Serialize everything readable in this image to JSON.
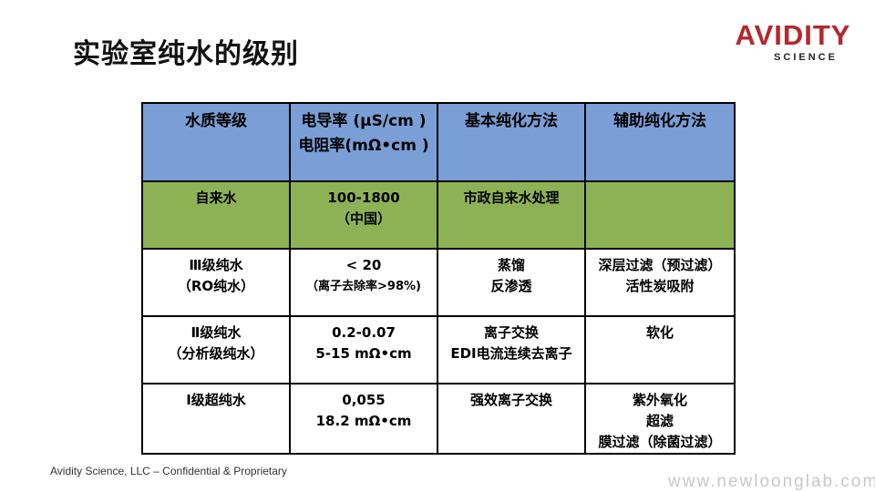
{
  "title": "实验室纯水的级别",
  "logo": {
    "main": "AVIDITY",
    "sub": "SCIENCE"
  },
  "table": {
    "headers": [
      [
        "水质等级"
      ],
      [
        "电导率 (μS/cm )",
        "电阻率(mΩ•cm )"
      ],
      [
        "基本纯化方法"
      ],
      [
        "辅助纯化方法"
      ]
    ],
    "rows": [
      [
        [
          "自来水"
        ],
        [
          "100-1800",
          "（中国）"
        ],
        [
          "市政自来水处理"
        ],
        []
      ],
      [
        [
          "Ⅲ级纯水",
          "（RO纯水）"
        ],
        [
          "< 20",
          "（离子去除率>98%)"
        ],
        [
          "蒸馏",
          "反渗透"
        ],
        [
          "深层过滤（预过滤）",
          "活性炭吸附"
        ]
      ],
      [
        [
          "Ⅱ级纯水",
          "（分析级纯水）"
        ],
        [
          "0.2-0.07",
          "5-15 mΩ•cm"
        ],
        [
          "离子交换",
          "EDI电流连续去离子"
        ],
        [
          "软化"
        ]
      ],
      [
        [
          "Ⅰ级超纯水"
        ],
        [
          "0,055",
          "18.2 mΩ•cm"
        ],
        [
          "强效离子交换"
        ],
        [
          "紫外氧化",
          "超滤",
          "膜过滤（除菌过滤）"
        ]
      ]
    ]
  },
  "footer": "Avidity Science, LLC – Confidential & Proprietary",
  "watermark": "www.newloonglab.com"
}
